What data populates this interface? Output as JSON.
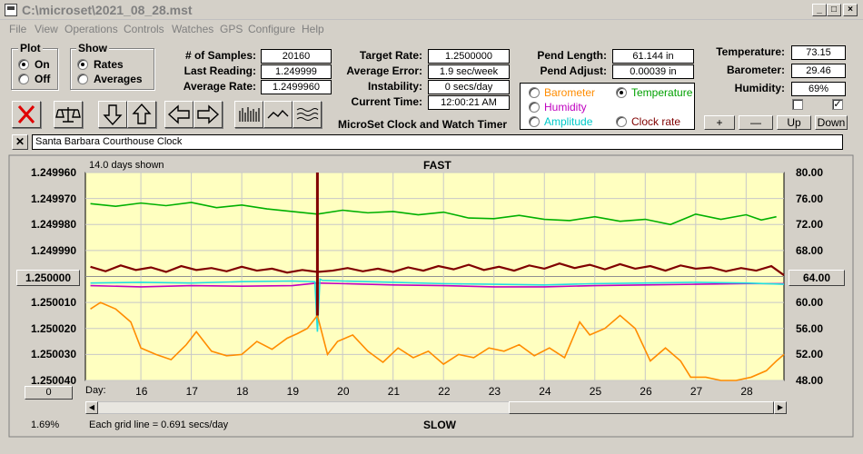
{
  "window": {
    "title": "C:\\microset\\2021_08_28.mst"
  },
  "menu": [
    "File",
    "View",
    "Operations",
    "Controls",
    "Watches",
    "GPS",
    "Configure",
    "Help"
  ],
  "plot_group": {
    "title": "Plot",
    "options": [
      "On",
      "Off"
    ],
    "selected": "On"
  },
  "show_group": {
    "title": "Show",
    "options": [
      "Rates",
      "Averages"
    ],
    "selected": "Rates"
  },
  "stats": {
    "samples_label": "# of Samples:",
    "samples": "20160",
    "last_label": "Last Reading:",
    "last": "1.249999",
    "avg_rate_label": "Average Rate:",
    "avg_rate": "1.2499960",
    "target_label": "Target Rate:",
    "target": "1.2500000",
    "avg_err_label": "Average Error:",
    "avg_err": "1.9 sec/week",
    "instab_label": "Instability:",
    "instab": "0 secs/day",
    "time_label": "Current Time:",
    "time": "12:00:21 AM",
    "pend_len_label": "Pend Length:",
    "pend_len": "61.144 in",
    "pend_adj_label": "Pend Adjust:",
    "pend_adj": "0.00039 in",
    "temp_label": "Temperature:",
    "temp": "73.15",
    "baro_label": "Barometer:",
    "baro": "29.46",
    "hum_label": "Humidity:",
    "hum": "69%"
  },
  "app_caption": "MicroSet Clock and Watch Timer",
  "legend": {
    "items": [
      {
        "label": "Barometer",
        "color": "#ff8c00",
        "selected": false
      },
      {
        "label": "Temperature",
        "color": "#00a000",
        "selected": true
      },
      {
        "label": "Humidity",
        "color": "#c000c0",
        "selected": false
      },
      {
        "label": "Amplitude",
        "color": "#00c8c8",
        "selected": false
      },
      {
        "label": "Clock rate",
        "color": "#800000",
        "selected": false
      }
    ]
  },
  "right_buttons": {
    "plus": "+",
    "minus": "—",
    "up": "Up",
    "down": "Down"
  },
  "watch_name": "Santa Barbara Courthouse Clock",
  "chart_data": {
    "type": "line",
    "top_label": "FAST",
    "bottom_label": "SLOW",
    "shown_label": "14.0 days shown",
    "grid_note": "Each grid line = 0.691 secs/day",
    "percent": "1.69%",
    "left_offset_value": "0",
    "xlabel": "Day:",
    "x_ticks": [
      "16",
      "17",
      "18",
      "19",
      "20",
      "21",
      "22",
      "23",
      "24",
      "25",
      "26",
      "27",
      "28"
    ],
    "y_left_ticks": [
      "1.249960",
      "1.249970",
      "1.249980",
      "1.249990",
      "1.250000",
      "1.250010",
      "1.250020",
      "1.250030",
      "1.250040"
    ],
    "y_left_highlight": "1.250000",
    "y_right_ticks": [
      "80.00",
      "76.00",
      "72.00",
      "68.00",
      "64.00",
      "60.00",
      "56.00",
      "52.00",
      "48.00"
    ],
    "y_right_highlight": "64.00",
    "xlim": [
      14.9,
      28.75
    ],
    "y_left_lim": [
      1.24996,
      1.25004
    ],
    "y_right_lim": [
      48,
      80
    ],
    "series": [
      {
        "color": "#00b000",
        "axis": "right",
        "x": [
          15.0,
          15.5,
          16.0,
          16.5,
          17.0,
          17.5,
          18.0,
          18.5,
          19.0,
          19.5,
          20.0,
          20.5,
          21.0,
          21.5,
          22.0,
          22.5,
          23.0,
          23.5,
          24.0,
          24.5,
          25.0,
          25.5,
          26.0,
          26.5,
          27.0,
          27.5,
          28.0,
          28.3,
          28.6
        ],
        "y": [
          75.2,
          74.8,
          75.3,
          74.9,
          75.4,
          74.6,
          75.0,
          74.4,
          74.0,
          73.6,
          74.2,
          73.8,
          74.0,
          73.5,
          73.9,
          73.0,
          72.9,
          73.4,
          72.8,
          72.6,
          73.2,
          72.5,
          72.8,
          72.0,
          73.6,
          72.8,
          73.5,
          72.7,
          73.2
        ]
      },
      {
        "color": "#800000",
        "axis": "right",
        "x": [
          15.0,
          15.3,
          15.6,
          15.9,
          16.2,
          16.5,
          16.8,
          17.1,
          17.4,
          17.7,
          18.0,
          18.3,
          18.6,
          18.9,
          19.2,
          19.5,
          19.8,
          20.1,
          20.4,
          20.7,
          21.0,
          21.3,
          21.6,
          21.9,
          22.2,
          22.5,
          22.8,
          23.1,
          23.4,
          23.7,
          24.0,
          24.3,
          24.6,
          24.9,
          25.2,
          25.5,
          25.8,
          26.1,
          26.4,
          26.7,
          27.0,
          27.3,
          27.6,
          27.9,
          28.2,
          28.5,
          28.75
        ],
        "y": [
          65.5,
          64.8,
          65.7,
          65.0,
          65.4,
          64.7,
          65.6,
          65.0,
          65.3,
          64.8,
          65.5,
          64.9,
          65.2,
          64.6,
          65.0,
          64.7,
          64.9,
          65.3,
          64.8,
          65.2,
          64.7,
          65.4,
          64.9,
          65.6,
          65.1,
          65.8,
          65.0,
          65.5,
          64.9,
          65.7,
          65.2,
          66.0,
          65.3,
          65.8,
          65.1,
          65.9,
          65.2,
          65.6,
          64.9,
          65.7,
          65.2,
          65.4,
          64.8,
          65.3,
          64.9,
          65.6,
          64.2
        ]
      },
      {
        "color": "#c000c0",
        "axis": "right",
        "x": [
          15.0,
          16.0,
          17.0,
          18.0,
          19.0,
          19.5,
          20.0,
          21.0,
          22.0,
          23.0,
          24.0,
          25.0,
          26.0,
          27.0,
          28.0,
          28.75
        ],
        "y": [
          62.6,
          62.4,
          62.6,
          62.5,
          62.6,
          63.0,
          62.9,
          62.7,
          62.6,
          62.4,
          62.4,
          62.6,
          62.7,
          62.8,
          62.9,
          62.9
        ]
      },
      {
        "color": "#20e0e0",
        "axis": "right",
        "x": [
          15.0,
          16.0,
          17.0,
          18.0,
          19.0,
          19.45,
          19.5,
          19.55,
          19.6,
          20.0,
          21.0,
          22.0,
          23.0,
          24.0,
          25.0,
          26.0,
          27.0,
          28.0,
          28.75
        ],
        "y": [
          63.0,
          63.1,
          63.0,
          63.2,
          63.3,
          63.2,
          55.5,
          63.6,
          63.4,
          63.3,
          63.1,
          62.9,
          62.8,
          62.7,
          62.9,
          63.0,
          63.1,
          63.0,
          62.8
        ]
      },
      {
        "color": "#ff8c00",
        "axis": "right",
        "x": [
          15.0,
          15.2,
          15.5,
          15.8,
          16.0,
          16.3,
          16.6,
          16.9,
          17.1,
          17.4,
          17.7,
          18.0,
          18.3,
          18.6,
          18.9,
          19.1,
          19.3,
          19.5,
          19.7,
          19.9,
          20.2,
          20.5,
          20.8,
          21.1,
          21.4,
          21.7,
          22.0,
          22.3,
          22.6,
          22.9,
          23.2,
          23.5,
          23.8,
          24.1,
          24.4,
          24.7,
          24.9,
          25.2,
          25.5,
          25.8,
          26.1,
          26.4,
          26.7,
          26.9,
          27.2,
          27.5,
          27.8,
          28.1,
          28.4,
          28.6,
          28.75
        ],
        "y": [
          59.0,
          60.0,
          59.0,
          57.0,
          53.0,
          52.0,
          51.2,
          53.5,
          55.5,
          52.5,
          51.8,
          52.0,
          54.0,
          52.8,
          54.5,
          55.2,
          56.0,
          58.0,
          52.0,
          54.0,
          55.0,
          52.5,
          50.8,
          53.0,
          51.5,
          52.5,
          50.5,
          52.0,
          51.5,
          53.0,
          52.5,
          53.5,
          51.8,
          53.0,
          51.5,
          57.0,
          55.0,
          56.0,
          58.0,
          56.0,
          51.0,
          53.0,
          51.0,
          48.5,
          48.5,
          48.0,
          48.0,
          48.5,
          49.5,
          51.0,
          52.0
        ]
      }
    ]
  }
}
